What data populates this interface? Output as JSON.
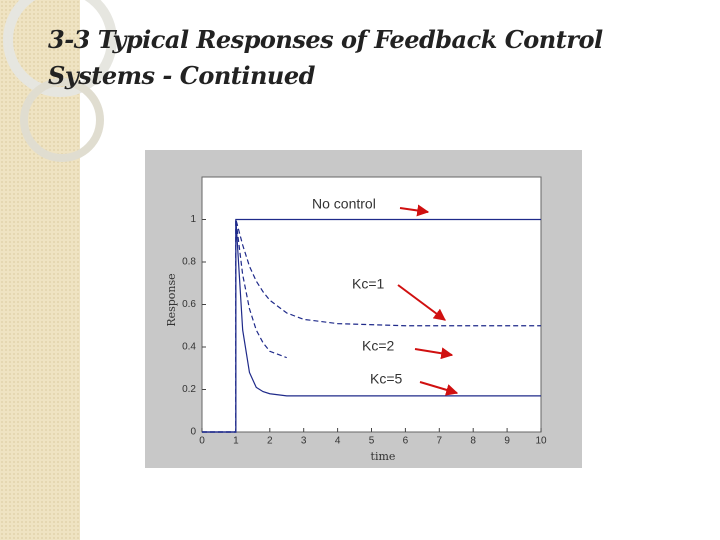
{
  "slide": {
    "title": "3-3 Typical Responses of Feedback Control Systems - Continued"
  },
  "chart_data": {
    "type": "line",
    "x_label": "time",
    "y_label": "Response",
    "annotations": [
      "No control",
      "Kc=1",
      "Kc=2",
      "Kc=5"
    ],
    "x": [
      0,
      1,
      1,
      1.2,
      1.4,
      1.6,
      1.8,
      2,
      2.5,
      3,
      4,
      6,
      8,
      10
    ],
    "series": [
      {
        "color": "#1f2a8a",
        "dashed": false,
        "values": [
          0,
          0,
          1,
          1,
          1,
          1,
          1,
          1,
          1,
          1,
          1,
          1,
          1,
          1
        ]
      },
      {
        "color": "#1f2a8a",
        "dashed": true,
        "values": [
          0,
          0,
          1,
          0.88,
          0.78,
          0.71,
          0.66,
          0.62,
          0.56,
          0.53,
          0.51,
          0.5,
          0.5,
          0.5
        ]
      },
      {
        "color": "#1f2a8a",
        "dashed": true,
        "values": [
          0,
          0,
          1,
          0.74,
          0.58,
          0.48,
          0.42,
          0.38,
          0.35,
          null,
          null,
          null,
          null,
          null
        ]
      },
      {
        "color": "#1f2a8a",
        "dashed": false,
        "values": [
          0,
          0,
          1,
          0.48,
          0.28,
          0.21,
          0.19,
          0.18,
          0.17,
          0.17,
          0.17,
          0.17,
          0.17,
          0.17
        ]
      }
    ],
    "xlim": [
      0,
      10
    ],
    "xticks": [
      0,
      1,
      2,
      3,
      4,
      5,
      6,
      7,
      8,
      9,
      10
    ],
    "ylim": [
      0,
      1.2
    ],
    "yticks": [
      0,
      0.2,
      0.4,
      0.6,
      0.8,
      1
    ],
    "grid": false
  }
}
